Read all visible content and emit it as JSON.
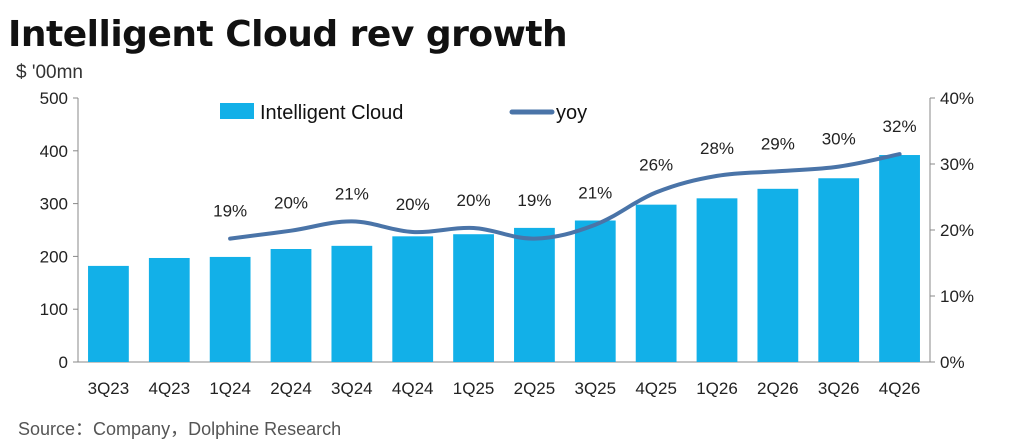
{
  "header": {
    "title": "Intelligent Cloud rev growth",
    "unit_label": "$ '00mn"
  },
  "footer": {
    "source": "Source：Company，Dolphine Research"
  },
  "colors": {
    "bar": "#12B0E8",
    "line": "#4A74A8"
  },
  "chart_data": {
    "type": "bar",
    "title": "Intelligent Cloud rev growth",
    "ylabel": "$ '00mn",
    "categories": [
      "3Q23",
      "4Q23",
      "1Q24",
      "2Q24",
      "3Q24",
      "4Q24",
      "1Q25",
      "2Q25",
      "3Q25",
      "4Q25",
      "1Q26",
      "2Q26",
      "3Q26",
      "4Q26"
    ],
    "ylim": [
      0,
      500
    ],
    "yticks": [
      "0",
      "100",
      "200",
      "300",
      "400",
      "500"
    ],
    "y2lim": [
      0,
      40
    ],
    "y2ticks": [
      "0%",
      "10%",
      "20%",
      "30%",
      "40%"
    ],
    "legend_position": "top",
    "grid": false,
    "series": [
      {
        "name": "Intelligent Cloud",
        "type": "bar",
        "axis": "left",
        "values": [
          182,
          197,
          199,
          214,
          220,
          238,
          242,
          254,
          268,
          298,
          310,
          328,
          348,
          392
        ]
      },
      {
        "name": "yoy",
        "type": "line",
        "axis": "right",
        "values": [
          null,
          null,
          18.7,
          19.9,
          21.3,
          19.7,
          20.3,
          18.7,
          20.8,
          25.7,
          28.2,
          28.9,
          29.6,
          31.5
        ],
        "labels": [
          "",
          "",
          "19%",
          "20%",
          "21%",
          "20%",
          "20%",
          "19%",
          "21%",
          "26%",
          "28%",
          "29%",
          "30%",
          "32%"
        ]
      }
    ]
  }
}
